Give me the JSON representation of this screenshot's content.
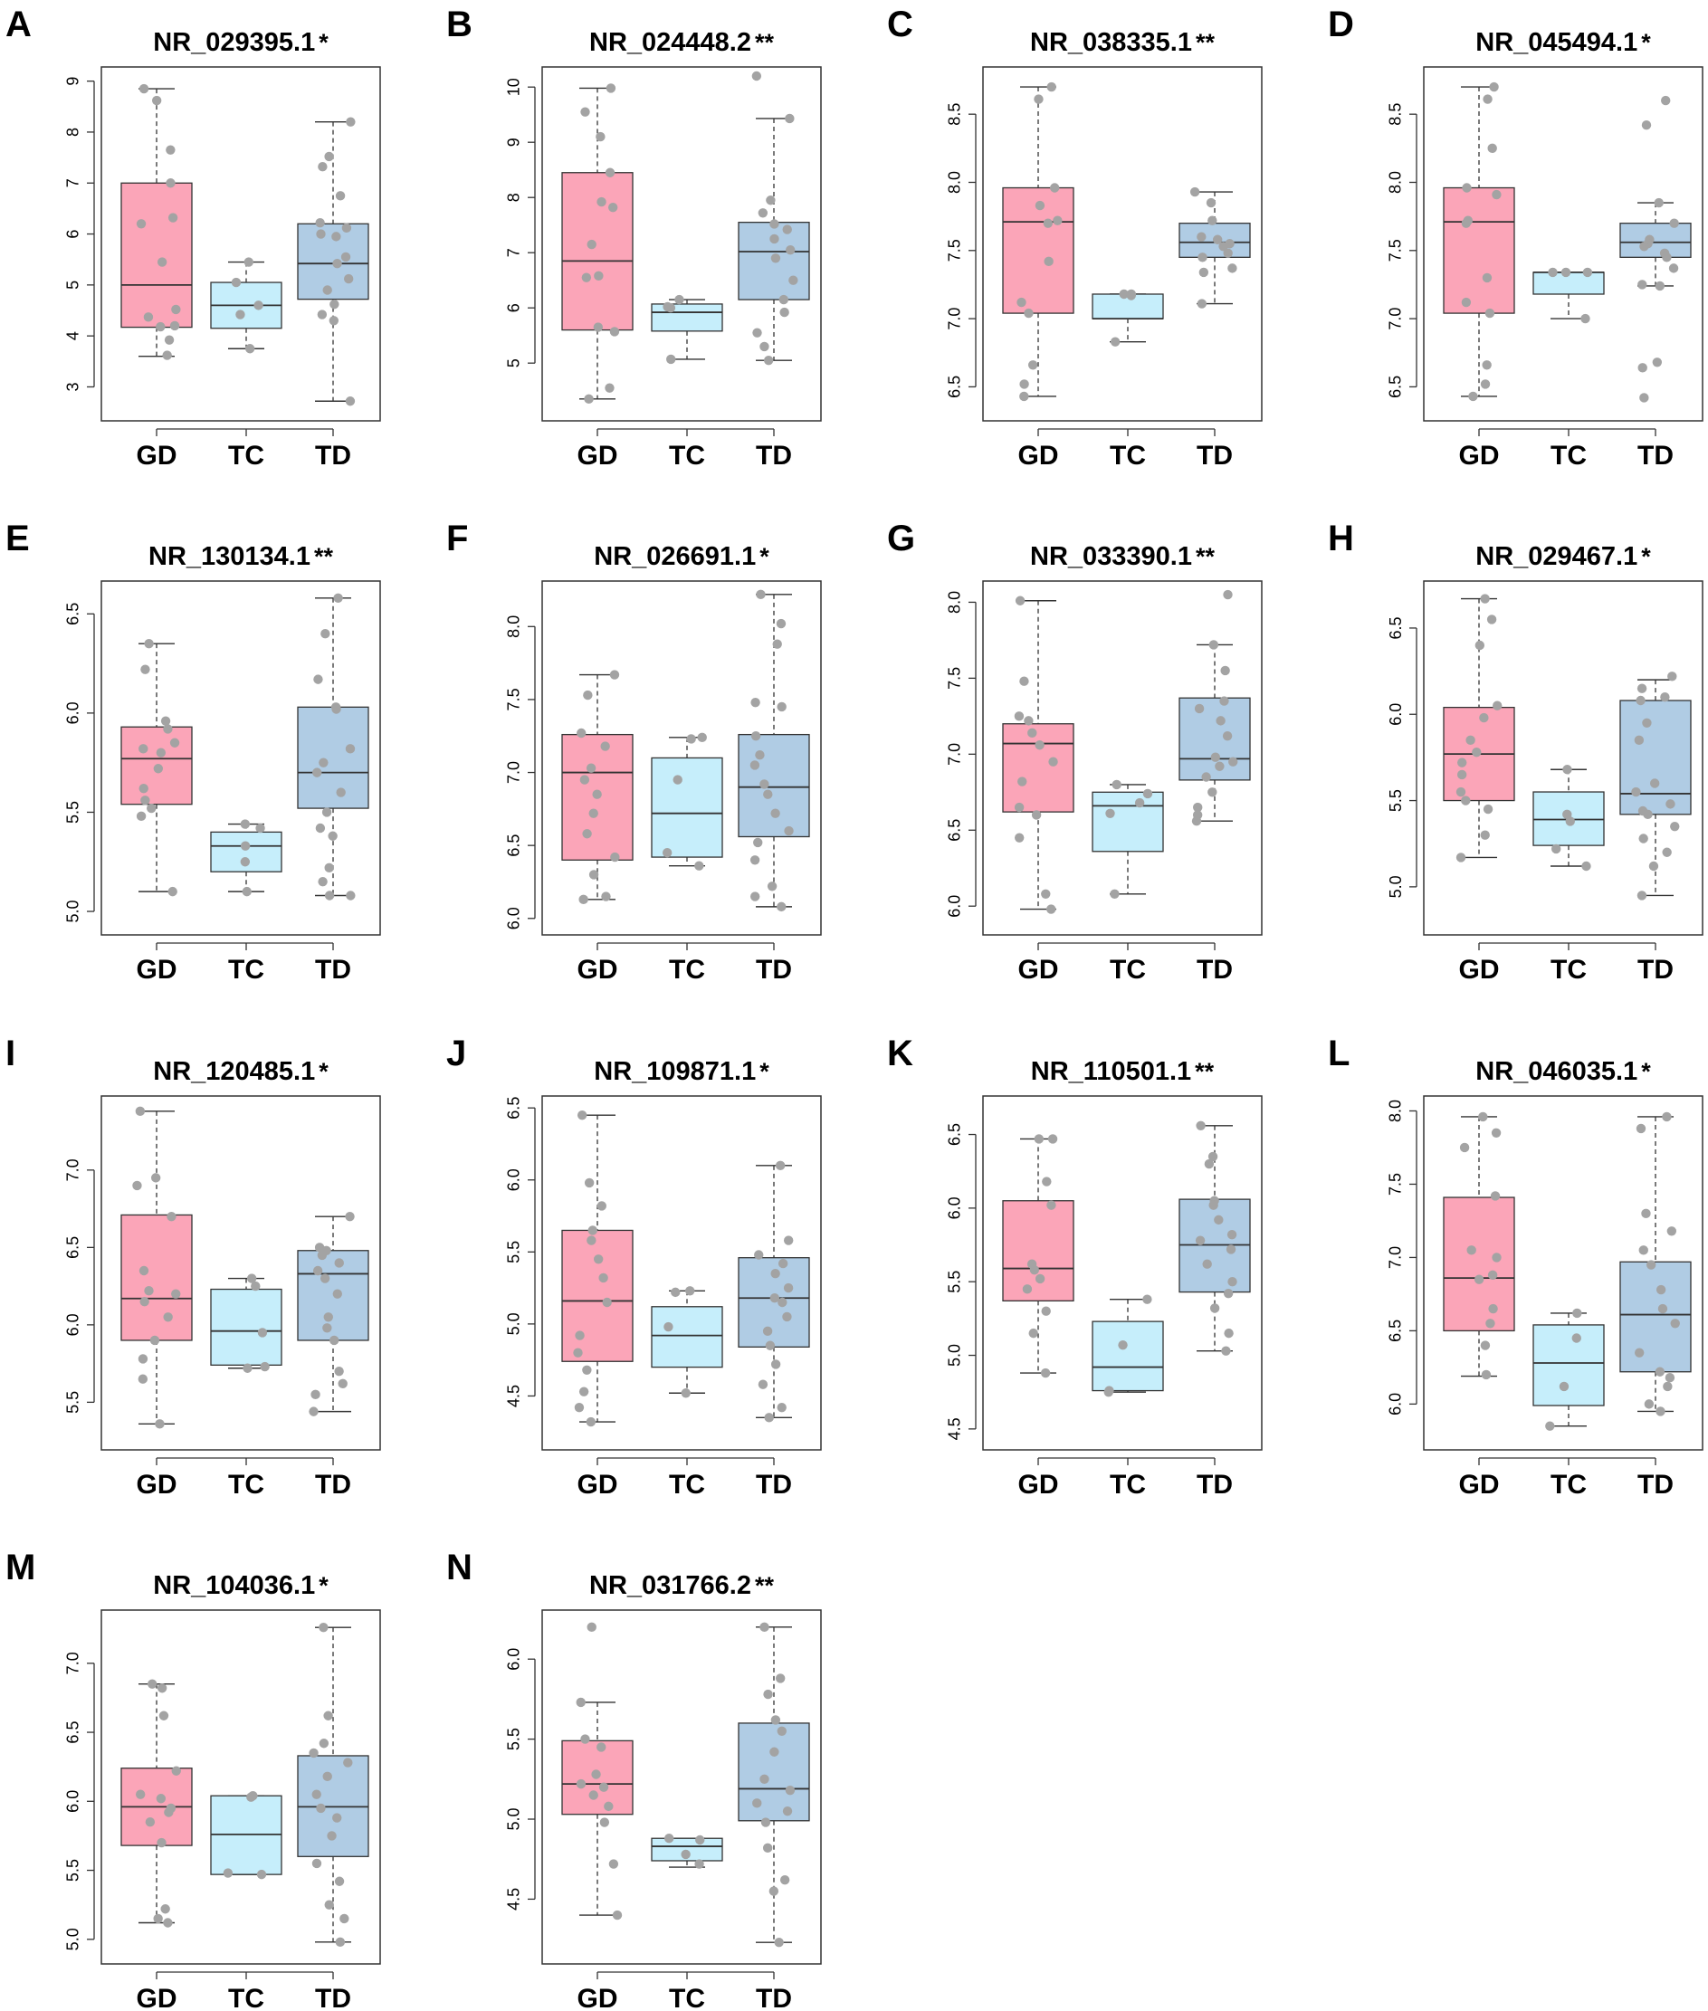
{
  "colors": {
    "GD": "#fba5b8",
    "TC": "#c6eefb",
    "TD": "#b0cce4",
    "point": "#a3a3a3",
    "line": "#333333"
  },
  "chart_data": [
    {
      "type": "box",
      "panel": "A",
      "title": "NR_029395.1",
      "sig": "*",
      "ylim": [
        2.6,
        9.1
      ],
      "yticks": [
        3,
        4,
        5,
        6,
        7,
        8,
        9
      ],
      "categories": [
        "GD",
        "TC",
        "TD"
      ],
      "boxes": [
        {
          "min": 3.6,
          "q1": 4.17,
          "median": 5.0,
          "q3": 7.0,
          "max": 8.85
        },
        {
          "min": 3.75,
          "q1": 4.15,
          "median": 4.6,
          "q3": 5.05,
          "max": 5.45
        },
        {
          "min": 2.72,
          "q1": 4.72,
          "median": 5.42,
          "q3": 6.2,
          "max": 8.2
        }
      ],
      "points": [
        [
          8.85,
          8.62,
          7.65,
          7.0,
          6.32,
          6.2,
          5.45,
          4.52,
          4.37,
          4.2,
          4.18,
          3.92,
          3.62
        ],
        [
          5.45,
          5.05,
          4.6,
          4.42,
          3.75
        ],
        [
          8.2,
          7.52,
          7.32,
          6.75,
          6.22,
          6.12,
          6.0,
          5.95,
          5.55,
          5.42,
          5.12,
          4.9,
          4.62,
          4.42,
          4.3,
          2.72
        ]
      ]
    },
    {
      "type": "box",
      "panel": "B",
      "title": "NR_024448.2",
      "sig": "**",
      "ylim": [
        4.2,
        10.2
      ],
      "yticks": [
        5,
        6,
        7,
        8,
        9,
        10
      ],
      "categories": [
        "GD",
        "TC",
        "TD"
      ],
      "boxes": [
        {
          "min": 4.35,
          "q1": 5.6,
          "median": 6.85,
          "q3": 8.45,
          "max": 9.98
        },
        {
          "min": 5.07,
          "q1": 5.58,
          "median": 5.92,
          "q3": 6.07,
          "max": 6.15
        },
        {
          "min": 5.05,
          "q1": 6.15,
          "median": 7.02,
          "q3": 7.55,
          "max": 9.43
        }
      ],
      "points": [
        [
          9.98,
          9.55,
          9.1,
          8.45,
          7.92,
          7.82,
          7.15,
          6.58,
          6.55,
          5.65,
          5.57,
          4.55,
          4.35
        ],
        [
          6.15,
          6.02,
          6.0,
          5.07
        ],
        [
          10.2,
          9.43,
          7.95,
          7.72,
          7.52,
          7.42,
          7.25,
          7.05,
          6.9,
          6.5,
          6.15,
          5.92,
          5.55,
          5.3,
          5.05
        ]
      ]
    },
    {
      "type": "box",
      "panel": "C",
      "title": "NR_038335.1",
      "sig": "**",
      "ylim": [
        6.35,
        8.78
      ],
      "yticks": [
        6.5,
        7.0,
        7.5,
        8.0,
        8.5
      ],
      "categories": [
        "GD",
        "TC",
        "TD"
      ],
      "boxes": [
        {
          "min": 6.43,
          "q1": 7.04,
          "median": 7.71,
          "q3": 7.96,
          "max": 8.7
        },
        {
          "min": 6.83,
          "q1": 7.0,
          "median": 7.0,
          "q3": 7.18,
          "max": 7.18
        },
        {
          "min": 7.11,
          "q1": 7.45,
          "median": 7.56,
          "q3": 7.7,
          "max": 7.93
        }
      ],
      "points": [
        [
          8.7,
          8.61,
          7.96,
          7.83,
          7.72,
          7.7,
          7.42,
          7.12,
          7.04,
          6.66,
          6.52,
          6.43
        ],
        [
          7.18,
          7.18,
          7.17,
          6.83
        ],
        [
          7.93,
          7.85,
          7.72,
          7.6,
          7.58,
          7.55,
          7.53,
          7.48,
          7.45,
          7.37,
          7.34,
          7.11
        ]
      ]
    },
    {
      "type": "box",
      "panel": "D",
      "title": "NR_045494.1",
      "sig": "*",
      "ylim": [
        6.35,
        8.78
      ],
      "yticks": [
        6.5,
        7.0,
        7.5,
        8.0,
        8.5
      ],
      "categories": [
        "GD",
        "TC",
        "TD"
      ],
      "boxes": [
        {
          "min": 6.43,
          "q1": 7.04,
          "median": 7.71,
          "q3": 7.96,
          "max": 8.7
        },
        {
          "min": 7.0,
          "q1": 7.18,
          "median": 7.34,
          "q3": 7.34,
          "max": 7.34
        },
        {
          "min": 7.24,
          "q1": 7.45,
          "median": 7.56,
          "q3": 7.7,
          "max": 7.85
        }
      ],
      "points": [
        [
          8.7,
          8.61,
          8.25,
          7.96,
          7.91,
          7.72,
          7.7,
          7.3,
          7.12,
          7.04,
          6.66,
          6.52,
          6.43
        ],
        [
          7.34,
          7.34,
          7.34,
          7.0
        ],
        [
          8.6,
          8.42,
          7.85,
          7.7,
          7.58,
          7.55,
          7.53,
          7.48,
          7.45,
          7.37,
          7.25,
          7.24,
          6.68,
          6.64,
          6.42
        ]
      ]
    },
    {
      "type": "box",
      "panel": "E",
      "title": "NR_130134.1",
      "sig": "**",
      "ylim": [
        4.95,
        6.62
      ],
      "yticks": [
        5.0,
        5.5,
        6.0,
        6.5
      ],
      "categories": [
        "GD",
        "TC",
        "TD"
      ],
      "boxes": [
        {
          "min": 5.1,
          "q1": 5.54,
          "median": 5.77,
          "q3": 5.93,
          "max": 6.35
        },
        {
          "min": 5.1,
          "q1": 5.2,
          "median": 5.33,
          "q3": 5.4,
          "max": 5.44
        },
        {
          "min": 5.08,
          "q1": 5.52,
          "median": 5.7,
          "q3": 6.03,
          "max": 6.58
        }
      ],
      "points": [
        [
          6.35,
          6.22,
          5.96,
          5.92,
          5.85,
          5.82,
          5.8,
          5.72,
          5.62,
          5.56,
          5.52,
          5.48,
          5.1
        ],
        [
          5.44,
          5.42,
          5.33,
          5.25,
          5.1
        ],
        [
          6.58,
          6.4,
          6.17,
          6.03,
          6.02,
          5.82,
          5.75,
          5.7,
          5.6,
          5.5,
          5.42,
          5.38,
          5.22,
          5.15,
          5.08,
          5.08
        ]
      ]
    },
    {
      "type": "box",
      "panel": "F",
      "title": "NR_026691.1",
      "sig": "*",
      "ylim": [
        5.98,
        8.25
      ],
      "yticks": [
        6.0,
        6.5,
        7.0,
        7.5,
        8.0
      ],
      "categories": [
        "GD",
        "TC",
        "TD"
      ],
      "boxes": [
        {
          "min": 6.13,
          "q1": 6.4,
          "median": 7.0,
          "q3": 7.26,
          "max": 7.67
        },
        {
          "min": 6.36,
          "q1": 6.42,
          "median": 6.72,
          "q3": 7.1,
          "max": 7.24
        },
        {
          "min": 6.08,
          "q1": 6.56,
          "median": 6.9,
          "q3": 7.26,
          "max": 8.22
        }
      ],
      "points": [
        [
          7.67,
          7.53,
          7.27,
          7.18,
          7.03,
          6.95,
          6.85,
          6.72,
          6.58,
          6.42,
          6.3,
          6.15,
          6.13
        ],
        [
          7.24,
          7.23,
          6.95,
          6.45,
          6.36
        ],
        [
          8.22,
          8.02,
          7.88,
          7.48,
          7.45,
          7.25,
          7.12,
          7.05,
          6.92,
          6.85,
          6.72,
          6.6,
          6.52,
          6.4,
          6.22,
          6.15,
          6.08
        ]
      ]
    },
    {
      "type": "box",
      "panel": "G",
      "title": "NR_033390.1",
      "sig": "**",
      "ylim": [
        5.9,
        8.08
      ],
      "yticks": [
        6.0,
        6.5,
        7.0,
        7.5,
        8.0
      ],
      "categories": [
        "GD",
        "TC",
        "TD"
      ],
      "boxes": [
        {
          "min": 5.98,
          "q1": 6.62,
          "median": 7.07,
          "q3": 7.2,
          "max": 8.01
        },
        {
          "min": 6.08,
          "q1": 6.36,
          "median": 6.66,
          "q3": 6.75,
          "max": 6.8
        },
        {
          "min": 6.56,
          "q1": 6.83,
          "median": 6.97,
          "q3": 7.37,
          "max": 7.72
        }
      ],
      "points": [
        [
          8.01,
          7.48,
          7.25,
          7.22,
          7.14,
          7.06,
          6.95,
          6.82,
          6.65,
          6.6,
          6.45,
          6.08,
          5.98
        ],
        [
          6.8,
          6.74,
          6.68,
          6.61,
          6.08
        ],
        [
          8.05,
          7.72,
          7.55,
          7.35,
          7.3,
          7.22,
          7.12,
          6.98,
          6.95,
          6.92,
          6.85,
          6.75,
          6.65,
          6.6,
          6.56
        ]
      ]
    },
    {
      "type": "box",
      "panel": "H",
      "title": "NR_029467.1",
      "sig": "*",
      "ylim": [
        4.8,
        6.72
      ],
      "yticks": [
        5.0,
        5.5,
        6.0,
        6.5
      ],
      "categories": [
        "GD",
        "TC",
        "TD"
      ],
      "boxes": [
        {
          "min": 5.17,
          "q1": 5.5,
          "median": 5.77,
          "q3": 6.04,
          "max": 6.67
        },
        {
          "min": 5.12,
          "q1": 5.24,
          "median": 5.39,
          "q3": 5.55,
          "max": 5.68
        },
        {
          "min": 4.95,
          "q1": 5.42,
          "median": 5.54,
          "q3": 6.08,
          "max": 6.2
        }
      ],
      "points": [
        [
          6.67,
          6.55,
          6.4,
          6.05,
          5.98,
          5.85,
          5.78,
          5.72,
          5.65,
          5.55,
          5.5,
          5.45,
          5.3,
          5.17
        ],
        [
          5.68,
          5.42,
          5.38,
          5.22,
          5.12
        ],
        [
          6.22,
          6.15,
          6.1,
          6.08,
          5.95,
          5.85,
          5.6,
          5.55,
          5.48,
          5.44,
          5.42,
          5.35,
          5.28,
          5.2,
          5.12,
          4.95
        ]
      ]
    },
    {
      "type": "box",
      "panel": "I",
      "title": "NR_120485.1",
      "sig": "*",
      "ylim": [
        5.28,
        7.42
      ],
      "yticks": [
        5.5,
        6.0,
        6.5,
        7.0
      ],
      "categories": [
        "GD",
        "TC",
        "TD"
      ],
      "boxes": [
        {
          "min": 5.36,
          "q1": 5.9,
          "median": 6.17,
          "q3": 6.71,
          "max": 7.38
        },
        {
          "min": 5.72,
          "q1": 5.74,
          "median": 5.96,
          "q3": 6.23,
          "max": 6.3
        },
        {
          "min": 5.44,
          "q1": 5.9,
          "median": 6.33,
          "q3": 6.48,
          "max": 6.7
        }
      ],
      "points": [
        [
          7.38,
          6.95,
          6.9,
          6.7,
          6.35,
          6.22,
          6.2,
          6.15,
          6.05,
          5.9,
          5.78,
          5.65,
          5.36
        ],
        [
          6.3,
          6.25,
          5.95,
          5.73,
          5.72
        ],
        [
          6.7,
          6.5,
          6.48,
          6.45,
          6.4,
          6.35,
          6.3,
          6.2,
          6.05,
          5.98,
          5.9,
          5.7,
          5.62,
          5.55,
          5.44
        ]
      ]
    },
    {
      "type": "box",
      "panel": "J",
      "title": "NR_109871.1",
      "sig": "*",
      "ylim": [
        4.22,
        6.52
      ],
      "yticks": [
        4.5,
        5.0,
        5.5,
        6.0,
        6.5
      ],
      "categories": [
        "GD",
        "TC",
        "TD"
      ],
      "boxes": [
        {
          "min": 4.32,
          "q1": 4.74,
          "median": 5.16,
          "q3": 5.65,
          "max": 6.45
        },
        {
          "min": 4.52,
          "q1": 4.7,
          "median": 4.92,
          "q3": 5.12,
          "max": 5.23
        },
        {
          "min": 4.35,
          "q1": 4.84,
          "median": 5.18,
          "q3": 5.46,
          "max": 6.1
        }
      ],
      "points": [
        [
          6.45,
          5.98,
          5.82,
          5.65,
          5.58,
          5.45,
          5.32,
          5.15,
          4.92,
          4.8,
          4.68,
          4.53,
          4.42,
          4.32
        ],
        [
          5.23,
          5.22,
          4.98,
          4.52
        ],
        [
          6.1,
          5.58,
          5.48,
          5.42,
          5.35,
          5.25,
          5.18,
          5.15,
          5.05,
          4.95,
          4.85,
          4.72,
          4.58,
          4.42,
          4.35
        ]
      ]
    },
    {
      "type": "box",
      "panel": "K",
      "title": "NR_110501.1",
      "sig": "**",
      "ylim": [
        4.45,
        6.7
      ],
      "yticks": [
        4.5,
        5.0,
        5.5,
        6.0,
        6.5
      ],
      "categories": [
        "GD",
        "TC",
        "TD"
      ],
      "boxes": [
        {
          "min": 4.88,
          "q1": 5.37,
          "median": 5.59,
          "q3": 6.05,
          "max": 6.47
        },
        {
          "min": 4.75,
          "q1": 4.76,
          "median": 4.92,
          "q3": 5.23,
          "max": 5.38
        },
        {
          "min": 5.03,
          "q1": 5.43,
          "median": 5.75,
          "q3": 6.06,
          "max": 6.56
        }
      ],
      "points": [
        [
          6.47,
          6.47,
          6.18,
          6.02,
          5.62,
          5.58,
          5.52,
          5.45,
          5.3,
          5.15,
          4.88
        ],
        [
          5.38,
          5.07,
          4.76,
          4.75
        ],
        [
          6.56,
          6.35,
          6.3,
          6.05,
          6.02,
          5.92,
          5.82,
          5.78,
          5.72,
          5.62,
          5.5,
          5.42,
          5.32,
          5.15,
          5.03
        ]
      ]
    },
    {
      "type": "box",
      "panel": "L",
      "title": "NR_046035.1",
      "sig": "*",
      "ylim": [
        5.78,
        8.04
      ],
      "yticks": [
        6.0,
        6.5,
        7.0,
        7.5,
        8.0
      ],
      "categories": [
        "GD",
        "TC",
        "TD"
      ],
      "boxes": [
        {
          "min": 6.19,
          "q1": 6.5,
          "median": 6.86,
          "q3": 7.41,
          "max": 7.96
        },
        {
          "min": 5.85,
          "q1": 5.99,
          "median": 6.28,
          "q3": 6.54,
          "max": 6.62
        },
        {
          "min": 5.95,
          "q1": 6.22,
          "median": 6.61,
          "q3": 6.97,
          "max": 7.96
        }
      ],
      "points": [
        [
          7.96,
          7.85,
          7.75,
          7.42,
          7.05,
          7.0,
          6.88,
          6.85,
          6.65,
          6.55,
          6.4,
          6.2
        ],
        [
          6.62,
          6.45,
          6.12,
          5.85
        ],
        [
          7.96,
          7.88,
          7.3,
          7.18,
          7.05,
          6.95,
          6.78,
          6.65,
          6.55,
          6.35,
          6.22,
          6.18,
          6.12,
          6.0,
          5.95
        ]
      ]
    },
    {
      "type": "box",
      "panel": "M",
      "title": "NR_104036.1",
      "sig": "*",
      "ylim": [
        4.92,
        7.32
      ],
      "yticks": [
        5.0,
        5.5,
        6.0,
        6.5,
        7.0
      ],
      "categories": [
        "GD",
        "TC",
        "TD"
      ],
      "boxes": [
        {
          "min": 5.12,
          "q1": 5.68,
          "median": 5.96,
          "q3": 6.24,
          "max": 6.85
        },
        {
          "min": 5.47,
          "q1": 5.47,
          "median": 5.76,
          "q3": 6.04,
          "max": 6.04
        },
        {
          "min": 4.98,
          "q1": 5.6,
          "median": 5.96,
          "q3": 6.33,
          "max": 7.26
        }
      ],
      "points": [
        [
          6.85,
          6.82,
          6.62,
          6.22,
          6.05,
          6.02,
          5.95,
          5.92,
          5.85,
          5.7,
          5.22,
          5.15,
          5.12
        ],
        [
          6.04,
          6.03,
          5.48,
          5.47
        ],
        [
          7.26,
          6.62,
          6.42,
          6.35,
          6.28,
          6.18,
          6.05,
          5.95,
          5.88,
          5.75,
          5.55,
          5.42,
          5.25,
          5.15,
          4.98
        ]
      ]
    },
    {
      "type": "box",
      "panel": "N",
      "title": "NR_031766.2",
      "sig": "**",
      "ylim": [
        4.18,
        6.25
      ],
      "yticks": [
        4.5,
        5.0,
        5.5,
        6.0
      ],
      "categories": [
        "GD",
        "TC",
        "TD"
      ],
      "boxes": [
        {
          "min": 4.4,
          "q1": 5.03,
          "median": 5.22,
          "q3": 5.49,
          "max": 5.73
        },
        {
          "min": 4.7,
          "q1": 4.74,
          "median": 4.83,
          "q3": 4.88,
          "max": 4.88
        },
        {
          "min": 4.23,
          "q1": 4.99,
          "median": 5.19,
          "q3": 5.6,
          "max": 6.2
        }
      ],
      "points": [
        [
          6.2,
          5.73,
          5.5,
          5.45,
          5.28,
          5.22,
          5.2,
          5.15,
          5.08,
          4.98,
          4.72,
          4.4
        ],
        [
          4.88,
          4.87,
          4.78,
          4.72
        ],
        [
          6.2,
          5.88,
          5.78,
          5.62,
          5.55,
          5.42,
          5.25,
          5.18,
          5.1,
          5.05,
          4.98,
          4.82,
          4.62,
          4.55,
          4.23
        ]
      ]
    }
  ]
}
